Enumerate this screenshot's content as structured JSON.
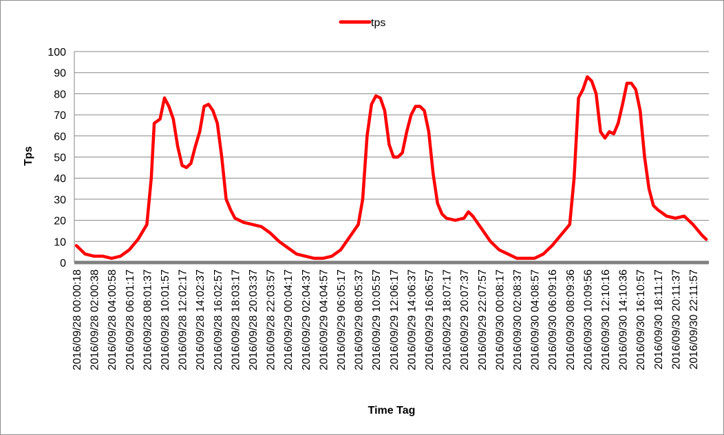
{
  "chart_data": {
    "type": "line",
    "title": "",
    "xlabel": "Time Tag",
    "ylabel": "Tps",
    "ylim": [
      0,
      100
    ],
    "yticks": [
      0,
      10,
      20,
      30,
      40,
      50,
      60,
      70,
      80,
      90,
      100
    ],
    "grid": "horizontal",
    "legend": {
      "position": "top-center",
      "entries": [
        "tps"
      ]
    },
    "categories": [
      "2016/09/28 00:00:18",
      "2016/09/28 02:00:38",
      "2016/09/28 04:00:58",
      "2016/09/28 06:01:17",
      "2016/09/28 08:01:37",
      "2016/09/28 10:01:57",
      "2016/09/28 12:02:17",
      "2016/09/28 14:02:37",
      "2016/09/28 16:02:57",
      "2016/09/28 18:03:17",
      "2016/09/28 20:03:37",
      "2016/09/28 22:03:57",
      "2016/09/29 00:04:17",
      "2016/09/29 02:04:37",
      "2016/09/29 04:04:57",
      "2016/09/29 06:05:17",
      "2016/09/29 08:05:37",
      "2016/09/29 10:05:57",
      "2016/09/29 12:06:17",
      "2016/09/29 14:06:37",
      "2016/09/29 16:06:57",
      "2016/09/29 18:07:17",
      "2016/09/29 20:07:37",
      "2016/09/29 22:07:57",
      "2016/09/30 00:08:17",
      "2016/09/30 02:08:37",
      "2016/09/30 04:08:57",
      "2016/09/30 06:09:16",
      "2016/09/30 08:09:36",
      "2016/09/30 10:09:56",
      "2016/09/30 12:10:16",
      "2016/09/30 14:10:36",
      "2016/09/30 16:10:57",
      "2016/09/30 18:11:17",
      "2016/09/30 20:11:37",
      "2016/09/30 22:11:57"
    ],
    "series": [
      {
        "name": "tps",
        "color": "#ff0000",
        "points": [
          [
            "2016/09/28 00:00:18",
            8
          ],
          [
            "2016/09/28 01:00:28",
            4
          ],
          [
            "2016/09/28 02:00:38",
            3
          ],
          [
            "2016/09/28 03:00:48",
            3
          ],
          [
            "2016/09/28 04:00:58",
            2
          ],
          [
            "2016/09/28 05:01:08",
            3
          ],
          [
            "2016/09/28 06:01:17",
            6
          ],
          [
            "2016/09/28 07:01:27",
            11
          ],
          [
            "2016/09/28 08:01:37",
            18
          ],
          [
            "2016/09/28 08:31:42",
            40
          ],
          [
            "2016/09/28 08:51:45",
            66
          ],
          [
            "2016/09/28 09:31:50",
            68
          ],
          [
            "2016/09/28 10:01:57",
            78
          ],
          [
            "2016/09/28 10:32:02",
            74
          ],
          [
            "2016/09/28 11:02:07",
            68
          ],
          [
            "2016/09/28 11:32:12",
            55
          ],
          [
            "2016/09/28 12:02:17",
            46
          ],
          [
            "2016/09/28 12:32:22",
            45
          ],
          [
            "2016/09/28 13:02:27",
            47
          ],
          [
            "2016/09/28 13:32:32",
            55
          ],
          [
            "2016/09/28 14:02:37",
            62
          ],
          [
            "2016/09/28 14:32:42",
            74
          ],
          [
            "2016/09/28 15:02:47",
            75
          ],
          [
            "2016/09/28 15:32:52",
            72
          ],
          [
            "2016/09/28 16:02:57",
            66
          ],
          [
            "2016/09/28 16:33:02",
            50
          ],
          [
            "2016/09/28 17:03:07",
            30
          ],
          [
            "2016/09/28 17:33:12",
            25
          ],
          [
            "2016/09/28 18:03:17",
            21
          ],
          [
            "2016/09/28 19:03:27",
            19
          ],
          [
            "2016/09/28 20:03:37",
            18
          ],
          [
            "2016/09/28 21:03:47",
            17
          ],
          [
            "2016/09/28 22:03:57",
            14
          ],
          [
            "2016/09/28 23:04:07",
            10
          ],
          [
            "2016/09/29 00:04:17",
            7
          ],
          [
            "2016/09/29 01:04:27",
            4
          ],
          [
            "2016/09/29 02:04:37",
            3
          ],
          [
            "2016/09/29 03:04:47",
            2
          ],
          [
            "2016/09/29 04:04:57",
            2
          ],
          [
            "2016/09/29 05:05:07",
            3
          ],
          [
            "2016/09/29 06:05:17",
            6
          ],
          [
            "2016/09/29 07:05:27",
            12
          ],
          [
            "2016/09/29 08:05:37",
            18
          ],
          [
            "2016/09/29 08:35:42",
            30
          ],
          [
            "2016/09/29 09:05:47",
            60
          ],
          [
            "2016/09/29 09:35:52",
            75
          ],
          [
            "2016/09/29 10:05:57",
            79
          ],
          [
            "2016/09/29 10:36:02",
            78
          ],
          [
            "2016/09/29 11:06:07",
            72
          ],
          [
            "2016/09/29 11:36:12",
            56
          ],
          [
            "2016/09/29 12:06:17",
            50
          ],
          [
            "2016/09/29 12:36:22",
            50
          ],
          [
            "2016/09/29 13:06:27",
            52
          ],
          [
            "2016/09/29 13:36:32",
            62
          ],
          [
            "2016/09/29 14:06:37",
            70
          ],
          [
            "2016/09/29 14:36:42",
            74
          ],
          [
            "2016/09/29 15:06:47",
            74
          ],
          [
            "2016/09/29 15:36:52",
            72
          ],
          [
            "2016/09/29 16:06:57",
            62
          ],
          [
            "2016/09/29 16:37:02",
            42
          ],
          [
            "2016/09/29 17:07:07",
            28
          ],
          [
            "2016/09/29 17:37:12",
            23
          ],
          [
            "2016/09/29 18:07:17",
            21
          ],
          [
            "2016/09/29 19:07:27",
            20
          ],
          [
            "2016/09/29 20:07:37",
            21
          ],
          [
            "2016/09/29 20:37:42",
            24
          ],
          [
            "2016/09/29 21:07:47",
            22
          ],
          [
            "2016/09/29 22:07:57",
            16
          ],
          [
            "2016/09/29 23:08:07",
            10
          ],
          [
            "2016/09/30 00:08:17",
            6
          ],
          [
            "2016/09/30 01:08:27",
            4
          ],
          [
            "2016/09/30 02:08:37",
            2
          ],
          [
            "2016/09/30 03:08:47",
            2
          ],
          [
            "2016/09/30 04:08:57",
            2
          ],
          [
            "2016/09/30 05:09:07",
            4
          ],
          [
            "2016/09/30 06:09:16",
            8
          ],
          [
            "2016/09/30 07:09:26",
            13
          ],
          [
            "2016/09/30 08:09:36",
            18
          ],
          [
            "2016/09/30 08:39:41",
            40
          ],
          [
            "2016/09/30 09:09:46",
            78
          ],
          [
            "2016/09/30 09:39:51",
            82
          ],
          [
            "2016/09/30 10:09:56",
            88
          ],
          [
            "2016/09/30 10:40:01",
            86
          ],
          [
            "2016/09/30 11:10:06",
            80
          ],
          [
            "2016/09/30 11:40:11",
            62
          ],
          [
            "2016/09/30 12:10:16",
            59
          ],
          [
            "2016/09/30 12:40:21",
            62
          ],
          [
            "2016/09/30 13:10:26",
            61
          ],
          [
            "2016/09/30 13:40:31",
            66
          ],
          [
            "2016/09/30 14:10:36",
            75
          ],
          [
            "2016/09/30 14:40:41",
            85
          ],
          [
            "2016/09/30 15:10:46",
            85
          ],
          [
            "2016/09/30 15:40:51",
            82
          ],
          [
            "2016/09/30 16:10:57",
            72
          ],
          [
            "2016/09/30 16:41:02",
            50
          ],
          [
            "2016/09/30 17:11:07",
            35
          ],
          [
            "2016/09/30 17:41:12",
            27
          ],
          [
            "2016/09/30 18:11:17",
            25
          ],
          [
            "2016/09/30 19:11:27",
            22
          ],
          [
            "2016/09/30 20:11:37",
            21
          ],
          [
            "2016/09/30 21:11:47",
            22
          ],
          [
            "2016/09/30 22:11:57",
            18
          ],
          [
            "2016/09/30 23:12:07",
            13
          ],
          [
            "2016/09/30 23:42:12",
            11
          ]
        ]
      }
    ]
  }
}
